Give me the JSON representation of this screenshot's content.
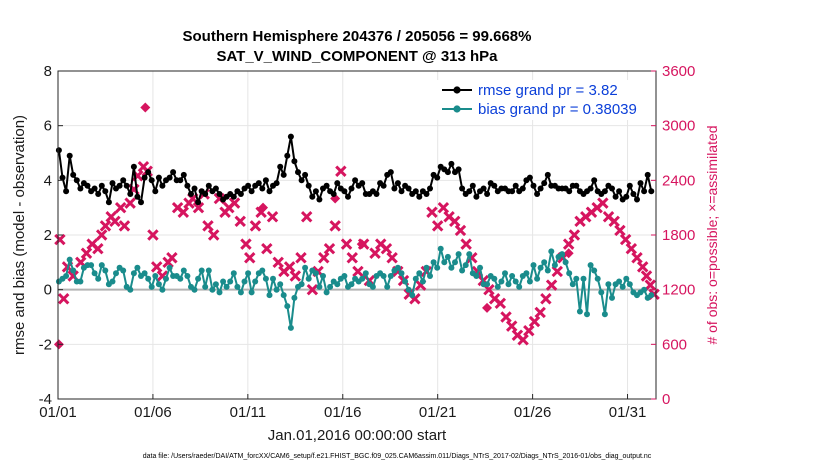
{
  "chart_data": {
    "type": "line",
    "title": "Southern Hemisphere 204376 / 205056 = 99.668%",
    "subtitle": "SAT_V_WIND_COMPONENT @ 313 hPa",
    "xlabel": "Jan.01,2016 00:00:00 start",
    "ylabel": "rmse and bias (model - observation)",
    "y2label": "# of obs: o=possible; ×=assimilated",
    "footer": "data file: /Users/raeder/DAI/ATM_forcXX/CAM6_setup/f.e21.FHIST_BGC.f09_025.CAM6assim.011/Diags_NTrS_2017-02/Diags_NTrS_2016-01/obs_diag_output.nc",
    "xlim": [
      0,
      31.5
    ],
    "ylim": [
      -4,
      8
    ],
    "y2lim": [
      0,
      3600
    ],
    "x_ticks": [
      0,
      5,
      10,
      15,
      20,
      25,
      30
    ],
    "x_tick_labels": [
      "01/01",
      "01/06",
      "01/11",
      "01/16",
      "01/21",
      "01/26",
      "01/31"
    ],
    "y_tick_labels": [
      "-4",
      "-2",
      "0",
      "2",
      "4",
      "6",
      "8"
    ],
    "y2_tick_labels": [
      "0",
      "600",
      "1200",
      "1800",
      "2400",
      "3000",
      "3600"
    ],
    "grid": true,
    "legend_position": "top-right",
    "colors": {
      "rmse": "#000000",
      "bias": "#1a8c8c",
      "obs": "#d6155f",
      "zero": "#b3b3b3",
      "grid": "#e6e6e6"
    },
    "series": [
      {
        "name": "rmse grand pr = 3.82",
        "values": [
          5.1,
          4.1,
          3.6,
          4.9,
          4.2,
          4.0,
          3.7,
          3.9,
          3.8,
          3.6,
          3.7,
          3.5,
          3.8,
          3.6,
          3.2,
          3.9,
          3.7,
          3.8,
          4.0,
          3.8,
          3.5,
          4.5,
          3.4,
          3.2,
          4.1,
          4.3,
          4.0,
          3.6,
          4.1,
          3.8,
          4.0,
          4.1,
          4.3,
          4.0,
          4.0,
          4.2,
          3.8,
          3.5,
          3.7,
          3.2,
          3.6,
          3.5,
          3.8,
          3.6,
          3.7,
          3.5,
          3.3,
          3.4,
          3.5,
          3.4,
          3.6,
          3.5,
          3.7,
          3.8,
          3.6,
          3.8,
          3.9,
          3.7,
          4.0,
          3.6,
          3.8,
          3.9,
          4.5,
          4.2,
          4.9,
          5.6,
          4.7,
          4.3,
          4.0,
          4.2,
          3.8,
          3.4,
          3.6,
          3.3,
          3.7,
          3.8,
          3.6,
          3.5,
          3.9,
          3.7,
          3.6,
          3.4,
          3.7,
          4.0,
          3.8,
          3.9,
          3.5,
          3.5,
          3.6,
          3.5,
          3.9,
          3.8,
          4.2,
          4.3,
          3.7,
          3.9,
          3.6,
          3.8,
          3.7,
          3.5,
          3.6,
          3.4,
          3.6,
          3.5,
          3.7,
          4.2,
          4.1,
          4.5,
          4.4,
          4.3,
          4.6,
          4.3,
          4.4,
          3.7,
          3.5,
          3.6,
          3.8,
          3.4,
          3.6,
          3.7,
          3.5,
          3.9,
          3.8,
          3.6,
          3.7,
          3.7,
          3.6,
          3.6,
          3.8,
          3.6,
          3.7,
          4.0,
          4.1,
          3.8,
          3.5,
          3.7,
          3.9,
          4.2,
          3.8,
          3.8,
          3.7,
          3.7,
          3.7,
          3.6,
          3.8,
          3.8,
          3.6,
          3.5,
          3.6,
          3.7,
          4.0,
          3.6,
          3.5,
          3.6,
          3.8,
          3.7,
          3.4,
          3.6,
          3.3,
          3.4,
          3.8,
          3.5,
          3.3,
          3.9,
          3.6,
          4.2,
          3.6
        ]
      },
      {
        "name": "bias grand pr = 0.38039",
        "values": [
          0.3,
          0.4,
          0.5,
          1.1,
          0.7,
          0.3,
          0.3,
          0.8,
          0.9,
          0.9,
          0.6,
          0.4,
          0.9,
          0.7,
          0.2,
          0.3,
          0.6,
          0.8,
          0.7,
          0.1,
          0.0,
          0.6,
          0.8,
          0.5,
          0.6,
          0.4,
          0.1,
          0.5,
          0.2,
          0.0,
          0.4,
          0.8,
          0.5,
          0.5,
          0.4,
          0.7,
          0.5,
          0.1,
          0.0,
          0.4,
          0.7,
          0.1,
          0.7,
          0.0,
          0.2,
          -0.1,
          0.3,
          0.1,
          0.3,
          0.6,
          0.1,
          -0.1,
          0.3,
          0.6,
          -0.1,
          0.3,
          0.6,
          0.7,
          0.4,
          -0.2,
          0.4,
          0.0,
          0.2,
          -0.2,
          -0.6,
          -1.4,
          -0.3,
          0.1,
          0.2,
          0.8,
          0.4,
          0.7,
          0.6,
          0.1,
          0.5,
          -0.1,
          0.1,
          0.3,
          0.2,
          0.4,
          0.5,
          0.1,
          0.2,
          0.4,
          0.3,
          0.4,
          0.6,
          0.2,
          0.1,
          0.5,
          0.6,
          0.5,
          0.1,
          0.5,
          0.7,
          0.8,
          0.6,
          0.3,
          0.0,
          -0.2,
          0.4,
          0.6,
          0.3,
          0.8,
          0.5,
          1.0,
          0.8,
          1.5,
          1.0,
          1.2,
          0.8,
          1.0,
          1.3,
          0.7,
          0.9,
          1.3,
          0.6,
          0.5,
          0.8,
          0.2,
          0.2,
          0.5,
          0.4,
          0.1,
          0.3,
          0.6,
          0.2,
          0.5,
          0.3,
          0.1,
          0.5,
          0.6,
          0.3,
          0.9,
          0.4,
          0.8,
          1.0,
          0.7,
          1.4,
          0.9,
          1.2,
          1.3,
          1.0,
          0.6,
          0.2,
          0.4,
          -0.8,
          0.4,
          -0.9,
          0.9,
          0.7,
          0.4,
          -0.1,
          -0.9,
          0.2,
          -0.3,
          0.2,
          0.3,
          0.1,
          0.4,
          0.2,
          -0.1,
          -0.2,
          -0.1,
          0.0,
          -0.3,
          -0.2
        ]
      }
    ],
    "obs_possible": {
      "name": "possible",
      "x": [
        0.05,
        4.6,
        10.8,
        14.6,
        16.0,
        22.6,
        26.9
      ],
      "values": [
        600,
        3200,
        2100,
        2200,
        1700,
        1000,
        1600
      ]
    },
    "obs_assimilated": {
      "name": "assimilated",
      "x": [
        0.1,
        0.3,
        0.5,
        0.8,
        1.2,
        1.5,
        1.8,
        2.1,
        2.3,
        2.5,
        2.8,
        3.0,
        3.3,
        3.5,
        3.8,
        4.0,
        4.2,
        4.5,
        4.7,
        5.0,
        5.2,
        5.5,
        5.8,
        6.0,
        6.3,
        6.6,
        6.9,
        7.1,
        7.4,
        7.7,
        7.9,
        8.2,
        8.5,
        8.8,
        9.0,
        9.3,
        9.6,
        9.9,
        10.1,
        10.4,
        10.7,
        11.0,
        11.3,
        11.6,
        11.9,
        12.2,
        12.5,
        12.8,
        13.1,
        13.4,
        13.7,
        14.0,
        14.3,
        14.6,
        14.9,
        15.2,
        15.5,
        15.8,
        16.1,
        16.4,
        16.7,
        17.0,
        17.3,
        17.6,
        17.9,
        18.2,
        18.5,
        18.8,
        19.1,
        19.4,
        19.7,
        20.0,
        20.3,
        20.6,
        20.9,
        21.2,
        21.5,
        21.8,
        22.1,
        22.4,
        22.7,
        23.0,
        23.3,
        23.6,
        23.9,
        24.2,
        24.5,
        24.8,
        25.1,
        25.4,
        25.7,
        26.0,
        26.3,
        26.6,
        26.9,
        27.2,
        27.5,
        27.8,
        28.1,
        28.4,
        28.7,
        29.0,
        29.3,
        29.6,
        29.9,
        30.2,
        30.5,
        30.8,
        31.0,
        31.2,
        31.4
      ],
      "values": [
        1750,
        1100,
        1450,
        1350,
        1500,
        1600,
        1700,
        1650,
        1800,
        1900,
        2000,
        1950,
        2100,
        1900,
        2150,
        2300,
        2450,
        2550,
        2500,
        1800,
        1450,
        1350,
        1500,
        1550,
        2100,
        2050,
        2150,
        2200,
        2100,
        2250,
        1900,
        1800,
        2200,
        2050,
        2100,
        2150,
        1950,
        1700,
        1550,
        1900,
        2050,
        1650,
        2000,
        1500,
        1400,
        1450,
        1350,
        1550,
        2000,
        1200,
        1400,
        1550,
        1650,
        1900,
        2500,
        1700,
        1550,
        1400,
        1700,
        1300,
        1600,
        1700,
        1650,
        1550,
        1400,
        1300,
        1150,
        1100,
        1250,
        1400,
        2050,
        1900,
        2100,
        2000,
        1950,
        1850,
        1700,
        1550,
        1400,
        1300,
        1200,
        1100,
        1050,
        900,
        800,
        700,
        650,
        750,
        850,
        950,
        1100,
        1250,
        1400,
        1550,
        1700,
        1800,
        1950,
        2000,
        2050,
        2100,
        2150,
        2000,
        1950,
        1850,
        1750,
        1650,
        1550,
        1450,
        1350,
        1250,
        1150
      ]
    }
  }
}
